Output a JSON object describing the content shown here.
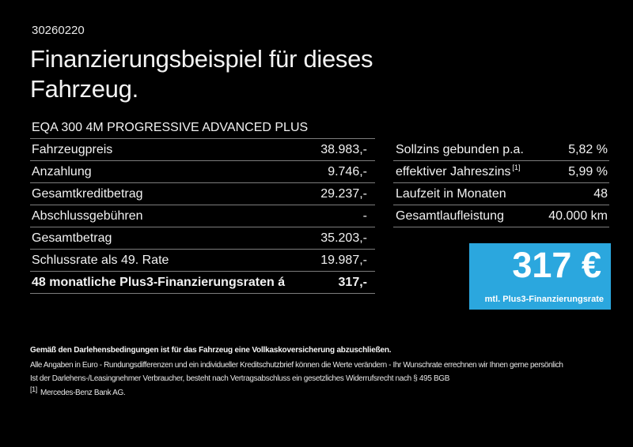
{
  "page": {
    "ref_number": "30260220",
    "title_line1": "Finanzierungsbeispiel für dieses",
    "title_line2": "Fahrzeug."
  },
  "vehicle": {
    "model": "EQA 300 4M PROGRESSIVE ADVANCED PLUS"
  },
  "finance_table": {
    "rows": [
      {
        "label": "Fahrzeugpreis",
        "value": "38.983,-"
      },
      {
        "label": "Anzahlung",
        "value": "9.746,-"
      },
      {
        "label": "Gesamtkreditbetrag",
        "value": "29.237,-"
      },
      {
        "label": "Abschlussgebühren",
        "value": "-"
      },
      {
        "label": "Gesamtbetrag",
        "value": "35.203,-"
      },
      {
        "label": "Schlussrate als 49. Rate",
        "value": "19.987,-"
      },
      {
        "label": "48 monatliche Plus3-Finanzierungsraten á",
        "value": "317,-"
      }
    ]
  },
  "conditions_table": {
    "rows": [
      {
        "label": "Sollzins gebunden p.a.",
        "value": "5,82 %"
      },
      {
        "label": "effektiver Jahreszins",
        "sup": "[1]",
        "value": "5,99 %"
      },
      {
        "label": "Laufzeit in Monaten",
        "value": "48"
      },
      {
        "label": "Gesamtlaufleistung",
        "value": "40.000 km"
      }
    ]
  },
  "rate_box": {
    "amount": "317 €",
    "caption": "mtl. Plus3-Finanzierungsrate",
    "background_color": "#2ba7de"
  },
  "disclaimer": {
    "bold_line": "Gemäß den Darlehensbedingungen ist für das Fahrzeug eine Vollkaskoversicherung abzuschließen.",
    "line2": "Alle Angaben in Euro - Rundungsdifferenzen und ein individueller Kreditschutzbrief können die Werte verändern - Ihr Wunschrate errechnen wir Ihnen gerne persönlich",
    "line3": "Ist der Darlehens-/Leasingnehmer Verbraucher, besteht nach Vertragsabschluss ein gesetzliches Widerrufsrecht nach § 495 BGB",
    "footnote_marker": "[1]",
    "footnote_text": "Mercedes-Benz Bank AG."
  },
  "colors": {
    "background": "#000000",
    "text": "#f2f2f2",
    "divider": "#7d7d7d",
    "accent_blue": "#2ba7de"
  }
}
